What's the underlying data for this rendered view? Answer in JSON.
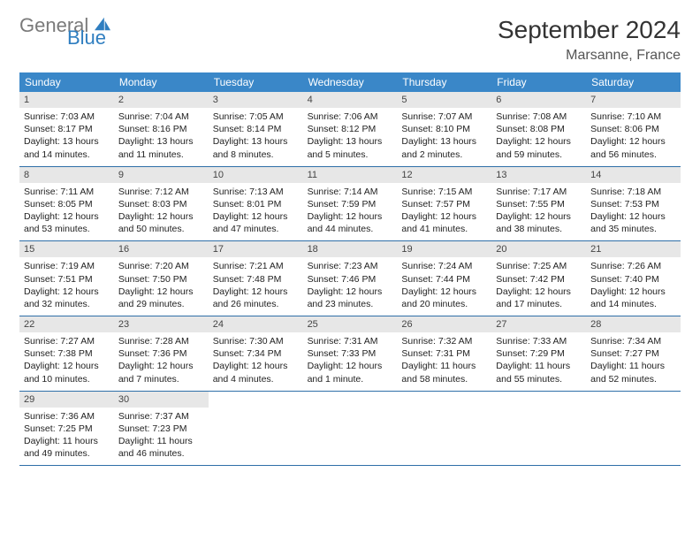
{
  "brand": {
    "part1": "General",
    "part2": "Blue"
  },
  "title": "September 2024",
  "location": "Marsanne, France",
  "colors": {
    "header_bg": "#3a87c8",
    "header_text": "#ffffff",
    "daynum_bg": "#e7e7e7",
    "divider": "#2f6fa8",
    "logo_gray": "#7a7a7a",
    "logo_blue": "#2f7ec0"
  },
  "weekdays": [
    "Sunday",
    "Monday",
    "Tuesday",
    "Wednesday",
    "Thursday",
    "Friday",
    "Saturday"
  ],
  "weeks": [
    [
      {
        "n": "1",
        "sr": "7:03 AM",
        "ss": "8:17 PM",
        "dl": "13 hours and 14 minutes."
      },
      {
        "n": "2",
        "sr": "7:04 AM",
        "ss": "8:16 PM",
        "dl": "13 hours and 11 minutes."
      },
      {
        "n": "3",
        "sr": "7:05 AM",
        "ss": "8:14 PM",
        "dl": "13 hours and 8 minutes."
      },
      {
        "n": "4",
        "sr": "7:06 AM",
        "ss": "8:12 PM",
        "dl": "13 hours and 5 minutes."
      },
      {
        "n": "5",
        "sr": "7:07 AM",
        "ss": "8:10 PM",
        "dl": "13 hours and 2 minutes."
      },
      {
        "n": "6",
        "sr": "7:08 AM",
        "ss": "8:08 PM",
        "dl": "12 hours and 59 minutes."
      },
      {
        "n": "7",
        "sr": "7:10 AM",
        "ss": "8:06 PM",
        "dl": "12 hours and 56 minutes."
      }
    ],
    [
      {
        "n": "8",
        "sr": "7:11 AM",
        "ss": "8:05 PM",
        "dl": "12 hours and 53 minutes."
      },
      {
        "n": "9",
        "sr": "7:12 AM",
        "ss": "8:03 PM",
        "dl": "12 hours and 50 minutes."
      },
      {
        "n": "10",
        "sr": "7:13 AM",
        "ss": "8:01 PM",
        "dl": "12 hours and 47 minutes."
      },
      {
        "n": "11",
        "sr": "7:14 AM",
        "ss": "7:59 PM",
        "dl": "12 hours and 44 minutes."
      },
      {
        "n": "12",
        "sr": "7:15 AM",
        "ss": "7:57 PM",
        "dl": "12 hours and 41 minutes."
      },
      {
        "n": "13",
        "sr": "7:17 AM",
        "ss": "7:55 PM",
        "dl": "12 hours and 38 minutes."
      },
      {
        "n": "14",
        "sr": "7:18 AM",
        "ss": "7:53 PM",
        "dl": "12 hours and 35 minutes."
      }
    ],
    [
      {
        "n": "15",
        "sr": "7:19 AM",
        "ss": "7:51 PM",
        "dl": "12 hours and 32 minutes."
      },
      {
        "n": "16",
        "sr": "7:20 AM",
        "ss": "7:50 PM",
        "dl": "12 hours and 29 minutes."
      },
      {
        "n": "17",
        "sr": "7:21 AM",
        "ss": "7:48 PM",
        "dl": "12 hours and 26 minutes."
      },
      {
        "n": "18",
        "sr": "7:23 AM",
        "ss": "7:46 PM",
        "dl": "12 hours and 23 minutes."
      },
      {
        "n": "19",
        "sr": "7:24 AM",
        "ss": "7:44 PM",
        "dl": "12 hours and 20 minutes."
      },
      {
        "n": "20",
        "sr": "7:25 AM",
        "ss": "7:42 PM",
        "dl": "12 hours and 17 minutes."
      },
      {
        "n": "21",
        "sr": "7:26 AM",
        "ss": "7:40 PM",
        "dl": "12 hours and 14 minutes."
      }
    ],
    [
      {
        "n": "22",
        "sr": "7:27 AM",
        "ss": "7:38 PM",
        "dl": "12 hours and 10 minutes."
      },
      {
        "n": "23",
        "sr": "7:28 AM",
        "ss": "7:36 PM",
        "dl": "12 hours and 7 minutes."
      },
      {
        "n": "24",
        "sr": "7:30 AM",
        "ss": "7:34 PM",
        "dl": "12 hours and 4 minutes."
      },
      {
        "n": "25",
        "sr": "7:31 AM",
        "ss": "7:33 PM",
        "dl": "12 hours and 1 minute."
      },
      {
        "n": "26",
        "sr": "7:32 AM",
        "ss": "7:31 PM",
        "dl": "11 hours and 58 minutes."
      },
      {
        "n": "27",
        "sr": "7:33 AM",
        "ss": "7:29 PM",
        "dl": "11 hours and 55 minutes."
      },
      {
        "n": "28",
        "sr": "7:34 AM",
        "ss": "7:27 PM",
        "dl": "11 hours and 52 minutes."
      }
    ],
    [
      {
        "n": "29",
        "sr": "7:36 AM",
        "ss": "7:25 PM",
        "dl": "11 hours and 49 minutes."
      },
      {
        "n": "30",
        "sr": "7:37 AM",
        "ss": "7:23 PM",
        "dl": "11 hours and 46 minutes."
      },
      null,
      null,
      null,
      null,
      null
    ]
  ],
  "labels": {
    "sunrise": "Sunrise:",
    "sunset": "Sunset:",
    "daylight": "Daylight:"
  }
}
